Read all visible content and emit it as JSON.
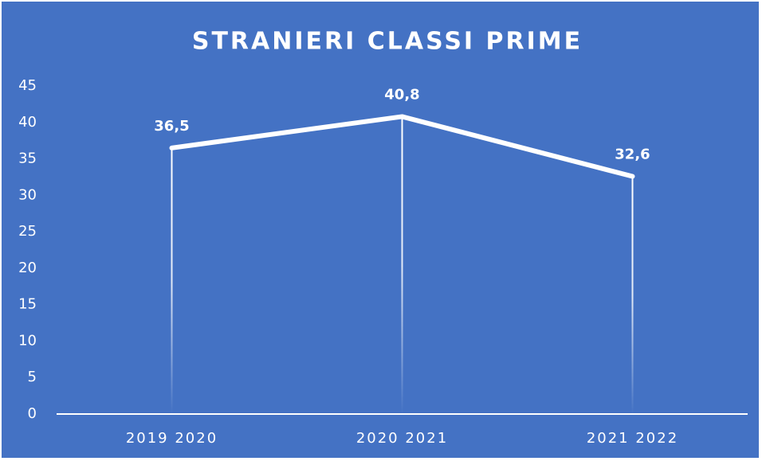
{
  "chart_data": {
    "type": "line",
    "title": "STRANIERI CLASSI PRIME",
    "categories": [
      "2019 2020",
      "2020 2021",
      "2021 2022"
    ],
    "values": [
      36.5,
      40.8,
      32.6
    ],
    "value_labels": [
      "36,5",
      "40,8",
      "32,6"
    ],
    "color": "#ffffff",
    "background": "#4472c4",
    "ylim": [
      0,
      45
    ],
    "yticks": [
      0,
      5,
      10,
      15,
      20,
      25,
      30,
      35,
      40,
      45
    ]
  }
}
